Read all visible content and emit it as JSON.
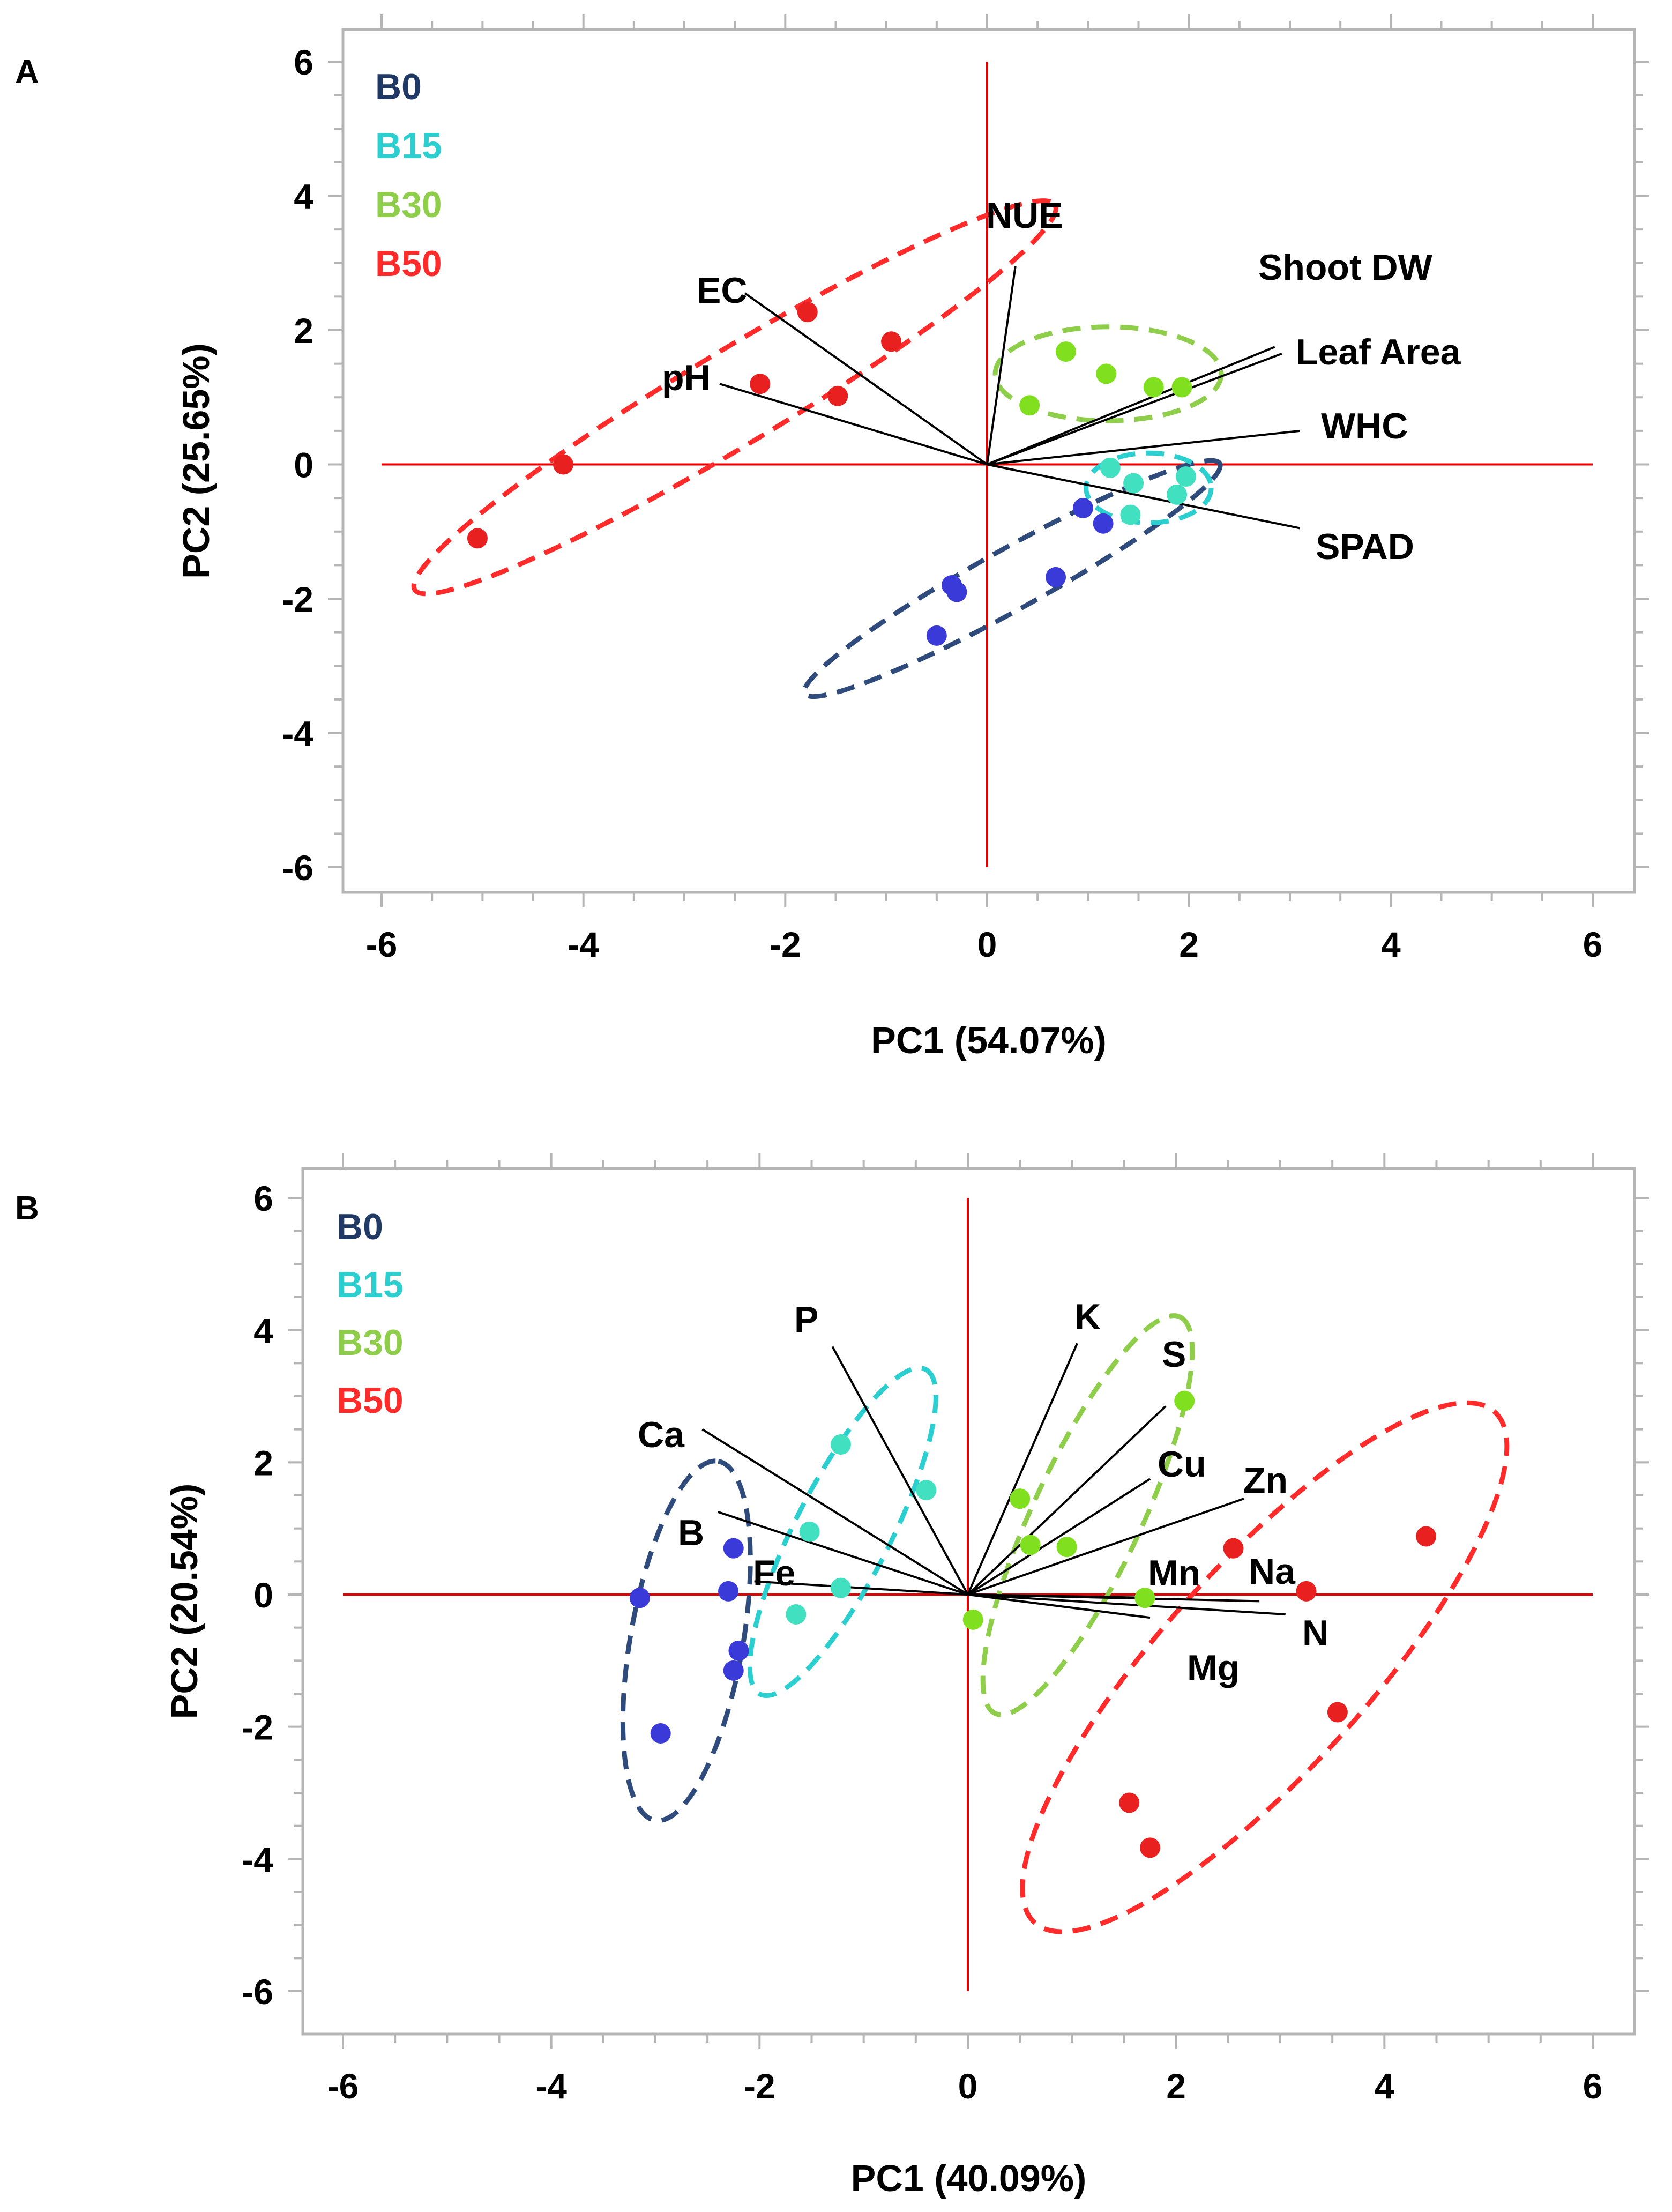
{
  "chart_data": [
    {
      "type": "scatter",
      "subtype": "pca-biplot",
      "panel_label": "A",
      "xlabel": "PC1 (54.07%)",
      "ylabel": "PC2 (25.65%)",
      "xlim": [
        -6,
        6
      ],
      "ylim": [
        -6,
        6
      ],
      "xticks": [
        "-6",
        "-4",
        "-2",
        "0",
        "2",
        "4",
        "6"
      ],
      "yticks": [
        "6",
        "4",
        "2",
        "0",
        "-2",
        "-4",
        "-6"
      ],
      "legend_position": "top-left",
      "series": [
        {
          "name": "B0",
          "color": "#3a3ad9",
          "text_color": "#1f3864",
          "ellipse_color": "#2f4b7c",
          "points": [
            [
              -0.35,
              -1.8
            ],
            [
              -0.3,
              -1.9
            ],
            [
              -0.5,
              -2.55
            ],
            [
              0.68,
              -1.68
            ],
            [
              0.95,
              -0.65
            ],
            [
              1.15,
              -0.88
            ]
          ]
        },
        {
          "name": "B15",
          "color": "#40e0c0",
          "text_color": "#2ccfcf",
          "ellipse_color": "#2ccfcf",
          "points": [
            [
              1.22,
              -0.05
            ],
            [
              1.45,
              -0.28
            ],
            [
              1.42,
              -0.75
            ],
            [
              1.88,
              -0.45
            ],
            [
              1.97,
              -0.18
            ]
          ]
        },
        {
          "name": "B30",
          "color": "#80e020",
          "text_color": "#8fce4a",
          "ellipse_color": "#8fce4a",
          "points": [
            [
              0.42,
              0.88
            ],
            [
              0.78,
              1.68
            ],
            [
              1.18,
              1.35
            ],
            [
              1.65,
              1.15
            ],
            [
              1.93,
              1.15
            ]
          ]
        },
        {
          "name": "B50",
          "color": "#e82020",
          "text_color": "#ff2a2a",
          "ellipse_color": "#ff2a2a",
          "points": [
            [
              -1.78,
              2.27
            ],
            [
              -0.95,
              1.83
            ],
            [
              -2.25,
              1.2
            ],
            [
              -1.48,
              1.02
            ],
            [
              -4.2,
              0.0
            ],
            [
              -5.05,
              -1.1
            ]
          ]
        }
      ],
      "loadings": [
        {
          "label": "EC",
          "x": -2.4,
          "y": 2.55
        },
        {
          "label": "pH",
          "x": -2.65,
          "y": 1.2
        },
        {
          "label": "NUE",
          "x": 0.28,
          "y": 2.95
        },
        {
          "label": "Shoot DW",
          "x": 2.85,
          "y": 1.75
        },
        {
          "label": "Leaf Area",
          "x": 2.92,
          "y": 1.65
        },
        {
          "label": "WHC",
          "x": 3.1,
          "y": 0.5
        },
        {
          "label": "SPAD",
          "x": 3.1,
          "y": -0.95
        }
      ],
      "ellipses": [
        {
          "group": "B0",
          "center": [
            0.25,
            -1.7
          ],
          "semi_axes": [
            2.35,
            0.45
          ],
          "angle_deg": 29
        },
        {
          "group": "B15",
          "center": [
            1.6,
            -0.35
          ],
          "semi_axes": [
            0.62,
            0.52
          ],
          "angle_deg": 0
        },
        {
          "group": "B30",
          "center": [
            1.2,
            1.35
          ],
          "semi_axes": [
            1.12,
            0.7
          ],
          "angle_deg": 0
        },
        {
          "group": "B50",
          "center": [
            -2.5,
            1.0
          ],
          "semi_axes": [
            3.7,
            0.7
          ],
          "angle_deg": 31
        }
      ]
    },
    {
      "type": "scatter",
      "subtype": "pca-biplot",
      "panel_label": "B",
      "xlabel": "PC1 (40.09%)",
      "ylabel": "PC2 (20.54%)",
      "xlim": [
        -6,
        6
      ],
      "ylim": [
        -6,
        6
      ],
      "xticks": [
        "-6",
        "-4",
        "-2",
        "0",
        "2",
        "4",
        "6"
      ],
      "yticks": [
        "6",
        "4",
        "2",
        "0",
        "-2",
        "-4",
        "-6"
      ],
      "legend_position": "top-left",
      "series": [
        {
          "name": "B0",
          "color": "#3a3ad9",
          "text_color": "#1f3864",
          "ellipse_color": "#2f4b7c",
          "points": [
            [
              -3.15,
              -0.05
            ],
            [
              -2.3,
              0.05
            ],
            [
              -2.25,
              0.7
            ],
            [
              -2.2,
              -0.85
            ],
            [
              -2.25,
              -1.15
            ],
            [
              -2.95,
              -2.1
            ]
          ]
        },
        {
          "name": "B15",
          "color": "#40e0c0",
          "text_color": "#2ccfcf",
          "ellipse_color": "#2ccfcf",
          "points": [
            [
              -1.22,
              2.27
            ],
            [
              -1.52,
              0.95
            ],
            [
              -1.65,
              -0.3
            ],
            [
              -1.22,
              0.1
            ],
            [
              -0.4,
              1.58
            ]
          ]
        },
        {
          "name": "B30",
          "color": "#80e020",
          "text_color": "#8fce4a",
          "ellipse_color": "#8fce4a",
          "points": [
            [
              2.08,
              2.93
            ],
            [
              0.5,
              1.45
            ],
            [
              0.6,
              0.75
            ],
            [
              0.95,
              0.72
            ],
            [
              1.7,
              -0.05
            ],
            [
              0.05,
              -0.38
            ]
          ]
        },
        {
          "name": "B50",
          "color": "#e82020",
          "text_color": "#ff2a2a",
          "ellipse_color": "#ff2a2a",
          "points": [
            [
              4.4,
              0.88
            ],
            [
              2.55,
              0.7
            ],
            [
              3.25,
              0.05
            ],
            [
              3.55,
              -1.78
            ],
            [
              1.55,
              -3.15
            ],
            [
              1.75,
              -3.83
            ]
          ]
        }
      ],
      "loadings": [
        {
          "label": "P",
          "x": -1.3,
          "y": 3.75
        },
        {
          "label": "K",
          "x": 1.05,
          "y": 3.8
        },
        {
          "label": "S",
          "x": 1.9,
          "y": 2.85
        },
        {
          "label": "Ca",
          "x": -2.55,
          "y": 2.5
        },
        {
          "label": "Cu",
          "x": 1.75,
          "y": 1.75
        },
        {
          "label": "Zn",
          "x": 2.65,
          "y": 1.45
        },
        {
          "label": "B",
          "x": -2.4,
          "y": 1.25
        },
        {
          "label": "Fe",
          "x": -2.05,
          "y": 0.2
        },
        {
          "label": "Mn",
          "x": 1.8,
          "y": -0.05
        },
        {
          "label": "Na",
          "x": 2.8,
          "y": -0.1
        },
        {
          "label": "N",
          "x": 3.05,
          "y": -0.3
        },
        {
          "label": "Mg",
          "x": 1.75,
          "y": -0.35
        }
      ],
      "ellipses": [
        {
          "group": "B0",
          "center": [
            -2.7,
            -0.7
          ],
          "semi_axes": [
            1.75,
            0.85
          ],
          "angle_deg": 80
        },
        {
          "group": "B15",
          "center": [
            -1.2,
            0.95
          ],
          "semi_axes": [
            1.75,
            0.72
          ],
          "angle_deg": 63
        },
        {
          "group": "B30",
          "center": [
            1.15,
            1.2
          ],
          "semi_axes": [
            2.1,
            0.82
          ],
          "angle_deg": 65
        },
        {
          "group": "B50",
          "center": [
            2.85,
            -1.1
          ],
          "semi_axes": [
            3.3,
            1.55
          ],
          "angle_deg": 48
        }
      ]
    }
  ]
}
